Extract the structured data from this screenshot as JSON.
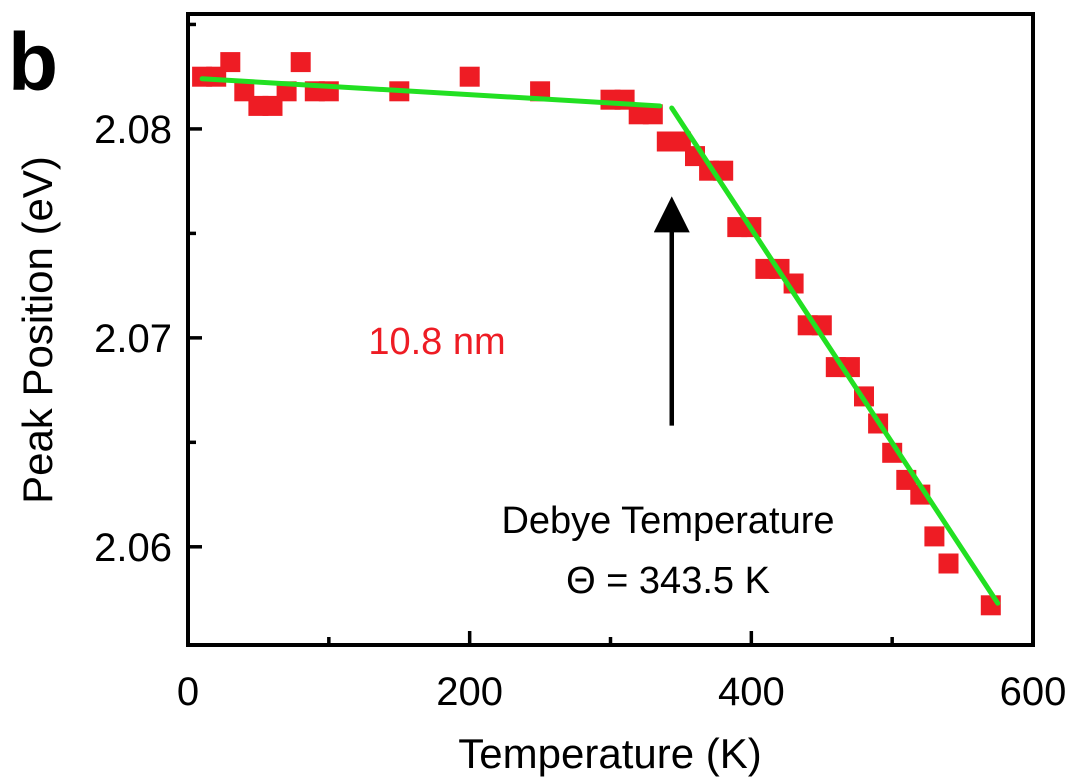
{
  "panel_label": "b",
  "colors": {
    "markers": "#ee1c24",
    "fit_line": "#22e022",
    "axis": "#000000",
    "series_label": "#ee1c24"
  },
  "chart_data": {
    "type": "scatter",
    "title": "",
    "xlabel": "Temperature (K)",
    "ylabel": "Peak Position (eV)",
    "xlim": [
      0,
      600
    ],
    "ylim": [
      2.0553,
      2.0855
    ],
    "x_ticks": [
      0,
      200,
      400,
      600
    ],
    "y_ticks": [
      2.06,
      2.07,
      2.08
    ],
    "x_tick_labels": [
      "0",
      "200",
      "400",
      "600"
    ],
    "y_tick_labels": [
      "2.06",
      "2.07",
      "2.08"
    ],
    "grid": false,
    "series": [
      {
        "name": "10.8 nm",
        "marker": "square",
        "x": [
          10,
          20,
          30,
          40,
          50,
          60,
          70,
          80,
          90,
          100,
          150,
          200,
          250,
          300,
          310,
          320,
          330,
          340,
          350,
          360,
          370,
          380,
          390,
          400,
          410,
          420,
          430,
          440,
          450,
          460,
          470,
          480,
          490,
          500,
          510,
          520,
          530,
          540,
          570
        ],
        "y": [
          2.0825,
          2.0825,
          2.0832,
          2.0818,
          2.0811,
          2.0811,
          2.0818,
          2.0832,
          2.0818,
          2.0818,
          2.0818,
          2.0825,
          2.0818,
          2.0814,
          2.0814,
          2.0807,
          2.0807,
          2.0794,
          2.0794,
          2.0787,
          2.078,
          2.078,
          2.0753,
          2.0753,
          2.0733,
          2.0733,
          2.0726,
          2.0706,
          2.0706,
          2.0686,
          2.0686,
          2.0672,
          2.0659,
          2.0645,
          2.0632,
          2.0625,
          2.0605,
          2.0592,
          2.0572
        ]
      }
    ],
    "fit_lines": [
      {
        "x": [
          10,
          335
        ],
        "y": [
          2.0824,
          2.0811
        ]
      },
      {
        "x": [
          343.5,
          575
        ],
        "y": [
          2.081,
          2.0573
        ]
      }
    ],
    "annotations": {
      "series_label": "10.8 nm",
      "debye_line1": "Debye Temperature",
      "debye_line2": "Θ = 343.5 K",
      "arrow": {
        "x": 343.5,
        "y_from": 2.0658,
        "y_to": 2.0762
      }
    }
  }
}
